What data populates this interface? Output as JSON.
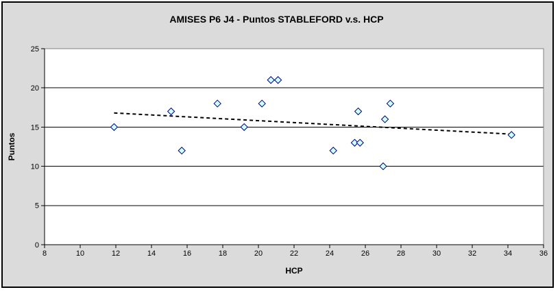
{
  "chart_data": {
    "type": "scatter",
    "title": "AMISES P6 J4 - Puntos STABLEFORD v.s. HCP",
    "xlabel": "HCP",
    "ylabel": "Puntos",
    "xlim": [
      8,
      36
    ],
    "ylim": [
      0,
      25
    ],
    "x_ticks": [
      8,
      10,
      12,
      14,
      16,
      18,
      20,
      22,
      24,
      26,
      28,
      30,
      32,
      34,
      36
    ],
    "y_ticks": [
      0,
      5,
      10,
      15,
      20,
      25
    ],
    "grid": "horizontal-only",
    "legend": "none",
    "series": [
      {
        "name": "Puntos STABLEFORD",
        "marker": "diamond",
        "points": [
          [
            11.9,
            15
          ],
          [
            15.1,
            17
          ],
          [
            15.7,
            12
          ],
          [
            17.7,
            18
          ],
          [
            19.2,
            15
          ],
          [
            20.2,
            18
          ],
          [
            20.7,
            21
          ],
          [
            21.1,
            21
          ],
          [
            24.2,
            12
          ],
          [
            25.4,
            13
          ],
          [
            25.6,
            17
          ],
          [
            25.7,
            13
          ],
          [
            27.0,
            10
          ],
          [
            27.1,
            16
          ],
          [
            27.4,
            18
          ],
          [
            34.2,
            14
          ]
        ]
      }
    ],
    "trendline": {
      "style": "dashed",
      "x1": 11.9,
      "y1": 16.8,
      "x2": 34.2,
      "y2": 14.1
    },
    "colors": {
      "chart_bg": "#dbdbdb",
      "frame_border": "#000000",
      "plot_bg": "#ffffff",
      "plot_border": "#808080",
      "grid": "#000000",
      "axis": "#000000",
      "marker_fill": "#ccffff",
      "marker_border": "#000080",
      "trend": "#000000"
    }
  }
}
